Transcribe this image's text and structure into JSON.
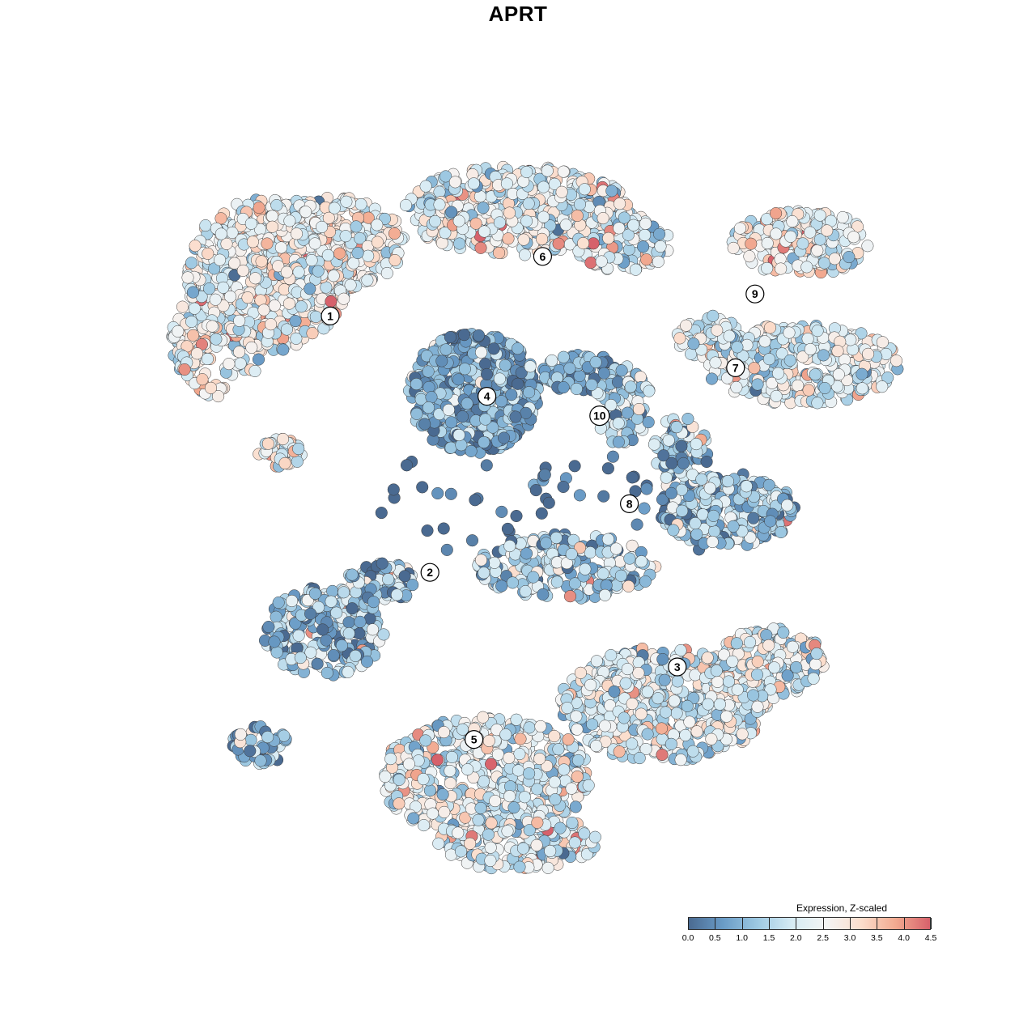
{
  "chart_data": {
    "type": "scatter",
    "title": "APRT",
    "legend": {
      "title": "Expression, Z-scaled",
      "ticks": [
        "0.0",
        "0.5",
        "1.0",
        "1.5",
        "2.0",
        "2.5",
        "3.0",
        "3.5",
        "4.0",
        "4.5"
      ],
      "range": [
        0,
        4.5
      ],
      "colors": [
        "#4a6a91",
        "#6a9cc7",
        "#9ec9e2",
        "#d6ebf4",
        "#f4f4f4",
        "#fbddcc",
        "#f2aa90",
        "#d6616b"
      ],
      "placement": "bottom-right"
    },
    "clusters": [
      {
        "label": "1",
        "x": -14.5,
        "y": 13.6,
        "mean": 2.4
      },
      {
        "label": "2",
        "x": -6.8,
        "y": -6.2,
        "mean": 1.2
      },
      {
        "label": "3",
        "x": 12.3,
        "y": -13.5,
        "mean": 2.1
      },
      {
        "label": "4",
        "x": -2.4,
        "y": 7.4,
        "mean": 0.8
      },
      {
        "label": "5",
        "x": -3.4,
        "y": -19.1,
        "mean": 2.1
      },
      {
        "label": "6",
        "x": 1.9,
        "y": 18.2,
        "mean": 2.2
      },
      {
        "label": "7",
        "x": 16.8,
        "y": 9.6,
        "mean": 2.0
      },
      {
        "label": "8",
        "x": 8.6,
        "y": -0.9,
        "mean": 1.3
      },
      {
        "label": "9",
        "x": 18.3,
        "y": 15.3,
        "mean": 2.4
      },
      {
        "label": "10",
        "x": 6.3,
        "y": 5.9,
        "mean": 1.5
      }
    ]
  }
}
